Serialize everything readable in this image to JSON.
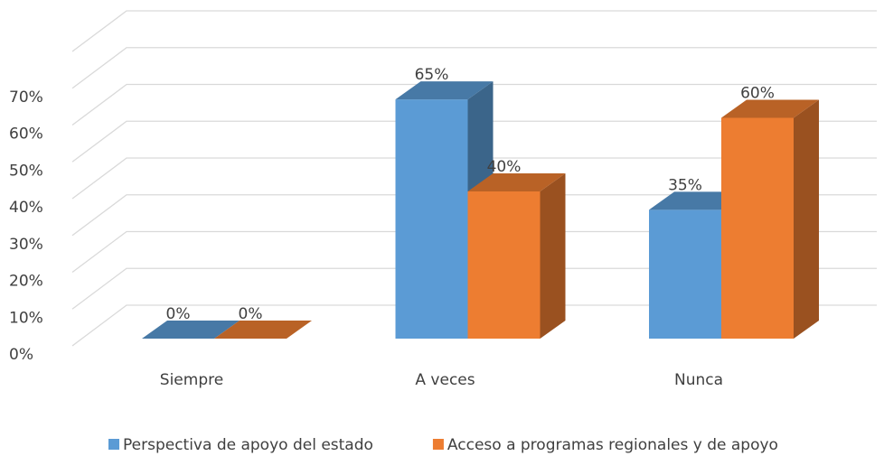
{
  "chart_data": {
    "type": "bar3d",
    "categories": [
      "Siempre",
      "A veces",
      "Nunca"
    ],
    "series": [
      {
        "name": "Perspectiva de apoyo del estado",
        "color": "#5b9bd5",
        "values": [
          0,
          65,
          35
        ],
        "value_labels": [
          "0%",
          "65%",
          "35%"
        ]
      },
      {
        "name": "Acceso a programas regionales y de apoyo",
        "color": "#ed7d31",
        "values": [
          0,
          40,
          60
        ],
        "value_labels": [
          "0%",
          "40%",
          "60%"
        ]
      }
    ],
    "ylim": [
      0,
      80
    ],
    "yticks": [
      {
        "value": 0,
        "label": "0%"
      },
      {
        "value": 10,
        "label": "10%"
      },
      {
        "value": 20,
        "label": "20%"
      },
      {
        "value": 30,
        "label": "30%"
      },
      {
        "value": 40,
        "label": "40%"
      },
      {
        "value": 50,
        "label": "50%"
      },
      {
        "value": 60,
        "label": "60%"
      },
      {
        "value": 70,
        "label": "70%"
      }
    ],
    "grid": true,
    "legend": "bottom"
  }
}
